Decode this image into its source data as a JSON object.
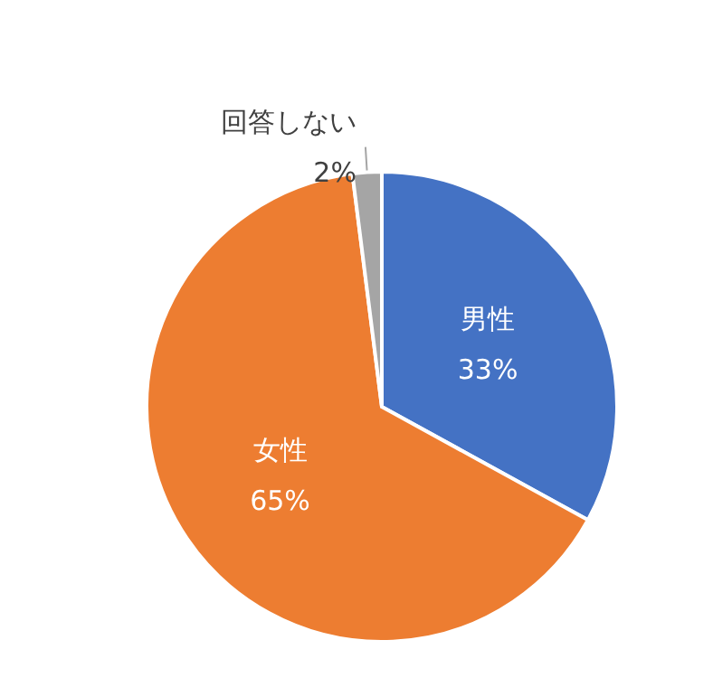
{
  "chart_data": {
    "type": "pie",
    "categories": [
      "男性",
      "女性",
      "回答しない"
    ],
    "values": [
      33,
      65,
      2
    ],
    "colors": [
      "#4472c4",
      "#ed7d31",
      "#a5a5a5"
    ],
    "value_labels": [
      "33%",
      "65%",
      "2%"
    ],
    "legend": false
  }
}
